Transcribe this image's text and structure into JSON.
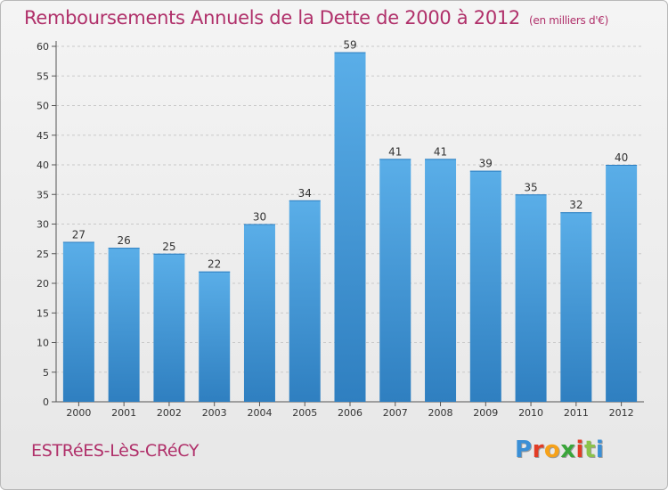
{
  "title": "Remboursements Annuels de la Dette de 2000 à 2012",
  "unit": "(en milliers d'€)",
  "commune": "ESTRéES-LèS-CRéCY",
  "logo": [
    "P",
    "r",
    "o",
    "x",
    "i",
    "t",
    "i"
  ],
  "logo_colors": [
    "#3a8fd6",
    "#e23c25",
    "#f6a21a",
    "#3aa53a",
    "#e23c25",
    "#8bc34a",
    "#3a8fd6"
  ],
  "colors": {
    "bar_light": "#5aaee8",
    "bar_dark": "#2f7fc0",
    "title": "#b0306a"
  },
  "chart_data": {
    "type": "bar",
    "categories": [
      "2000",
      "2001",
      "2002",
      "2003",
      "2004",
      "2005",
      "2006",
      "2007",
      "2008",
      "2009",
      "2010",
      "2011",
      "2012"
    ],
    "values": [
      27,
      26,
      25,
      22,
      30,
      34,
      59,
      41,
      41,
      39,
      35,
      32,
      40
    ],
    "ylim": [
      0,
      60
    ],
    "yticks": [
      0,
      5,
      10,
      15,
      20,
      25,
      30,
      35,
      40,
      45,
      50,
      55,
      60
    ],
    "grid": "horizontal dashed",
    "data_labels": true
  }
}
